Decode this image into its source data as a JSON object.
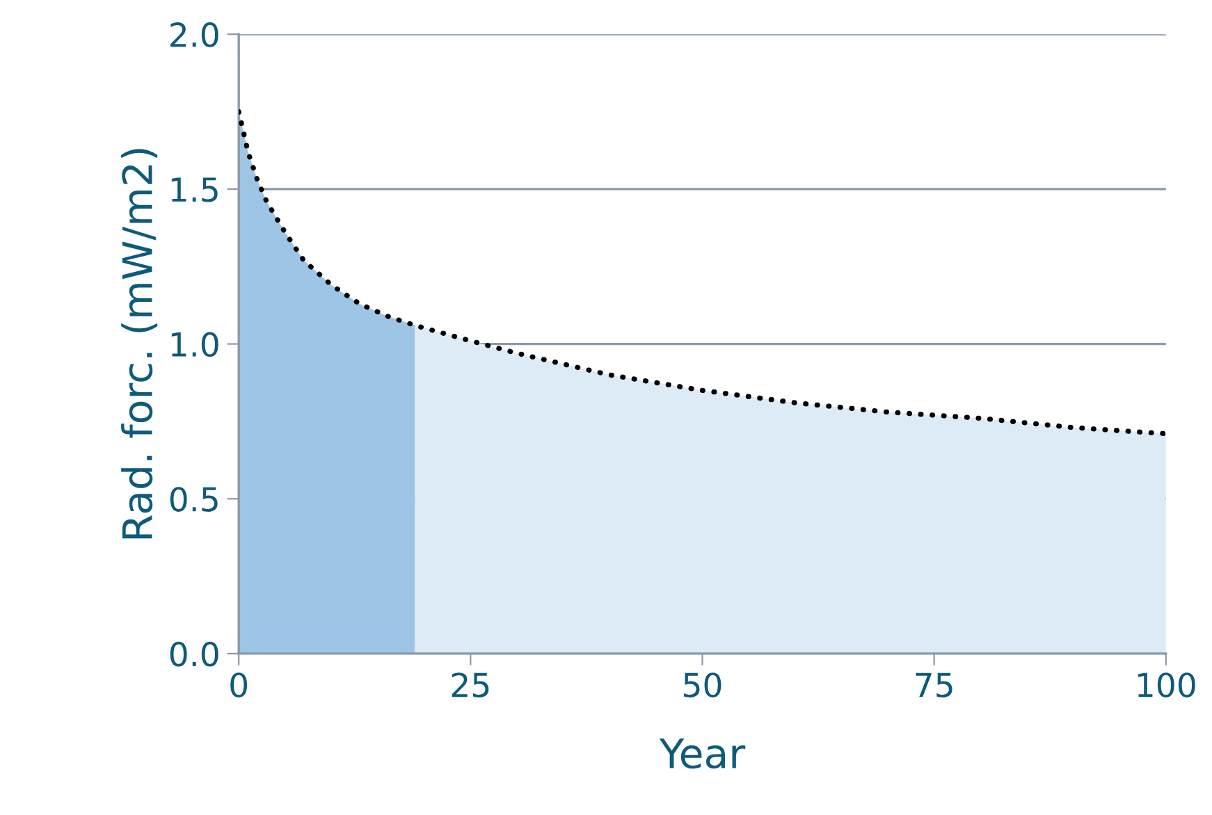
{
  "chart_data": {
    "type": "area",
    "xlabel": "Year",
    "ylabel": "Rad. forc. (mW/m2)",
    "xlim": [
      0,
      100
    ],
    "xticks": [
      0,
      25,
      50,
      75,
      100
    ],
    "ylim": [
      0,
      2.0
    ],
    "yticks": [
      {
        "value": 0,
        "label": "0.0"
      },
      {
        "value": 0.5,
        "label": "0.5"
      },
      {
        "value": 1.0,
        "label": "1.0"
      },
      {
        "value": 1.5,
        "label": "1.5"
      },
      {
        "value": 2.0,
        "label": "2.0"
      }
    ],
    "grid": "y",
    "legend": false,
    "series": [
      {
        "color": "#9dc6e6",
        "x": [
          0,
          1,
          2,
          3,
          5,
          7,
          10,
          13,
          16,
          19
        ],
        "values": [
          1.75,
          1.62,
          1.53,
          1.46,
          1.36,
          1.27,
          1.19,
          1.13,
          1.09,
          1.06
        ]
      },
      {
        "color": "#dcebf6",
        "x": [
          19,
          25,
          30,
          40,
          50,
          60,
          70,
          80,
          90,
          100
        ],
        "values": [
          1.06,
          1.01,
          0.97,
          0.9,
          0.85,
          0.81,
          0.78,
          0.76,
          0.73,
          0.71
        ]
      },
      {
        "type": "line",
        "color": "#000000",
        "line_style": "dotted",
        "marker": "none",
        "x": [
          0,
          1,
          2,
          3,
          5,
          7,
          10,
          13,
          16,
          19,
          25,
          30,
          40,
          50,
          60,
          70,
          80,
          90,
          100
        ],
        "values": [
          1.75,
          1.62,
          1.53,
          1.46,
          1.36,
          1.27,
          1.19,
          1.13,
          1.09,
          1.06,
          1.01,
          0.97,
          0.9,
          0.85,
          0.81,
          0.78,
          0.76,
          0.73,
          0.71
        ]
      }
    ]
  }
}
